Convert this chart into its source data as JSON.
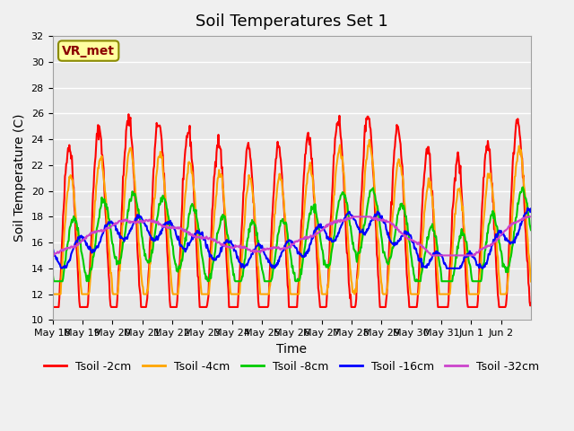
{
  "title": "Soil Temperatures Set 1",
  "xlabel": "Time",
  "ylabel": "Soil Temperature (C)",
  "ylim": [
    10,
    32
  ],
  "annotation_text": "VR_met",
  "annotation_bg": "#FFFFA0",
  "annotation_border": "#8B8B00",
  "annotation_text_color": "#8B0000",
  "series_colors": {
    "Tsoil -2cm": "#FF0000",
    "Tsoil -4cm": "#FFA500",
    "Tsoil -8cm": "#00CC00",
    "Tsoil -16cm": "#0000FF",
    "Tsoil -32cm": "#CC44CC"
  },
  "xtick_labels": [
    "May 18",
    "May 19",
    "May 20",
    "May 21",
    "May 22",
    "May 23",
    "May 24",
    "May 25",
    "May 26",
    "May 27",
    "May 28",
    "May 29",
    "May 30",
    "May 31",
    "Jun 1",
    "Jun 2"
  ],
  "plot_bg": "#E8E8E8",
  "grid_color": "#FFFFFF",
  "title_fontsize": 13,
  "axis_fontsize": 10,
  "tick_fontsize": 8,
  "legend_fontsize": 9
}
